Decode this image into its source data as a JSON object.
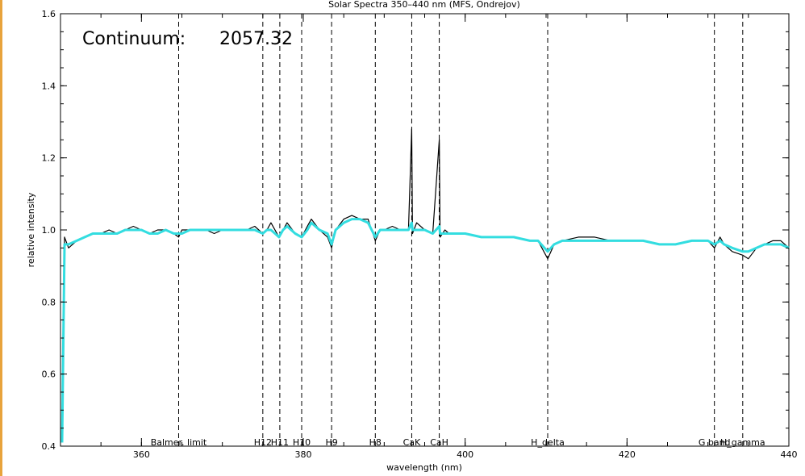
{
  "chart_data": {
    "type": "line",
    "title": "Solar Spectra 350–440 nm (MFS, Ondrejov)",
    "xlabel": "wavelength (nm)",
    "ylabel": "relative intensity",
    "xlim": [
      350,
      440
    ],
    "ylim": [
      0.4,
      1.6
    ],
    "x_ticks": [
      360,
      380,
      400,
      420,
      440
    ],
    "y_ticks": [
      0.4,
      0.6,
      0.8,
      1.0,
      1.2,
      1.4,
      1.6
    ],
    "annotation": {
      "label": "Continuum:",
      "value": "2057.32"
    },
    "spectral_lines": [
      {
        "name": "Balmer. limit",
        "wavelength": 364.6
      },
      {
        "name": "H12",
        "wavelength": 375.0
      },
      {
        "name": "H11",
        "wavelength": 377.1
      },
      {
        "name": "H10",
        "wavelength": 379.8
      },
      {
        "name": "H9",
        "wavelength": 383.5
      },
      {
        "name": "H8",
        "wavelength": 388.9
      },
      {
        "name": "CaK",
        "wavelength": 393.4
      },
      {
        "name": "CaH",
        "wavelength": 396.8
      },
      {
        "name": "H_delta",
        "wavelength": 410.2
      },
      {
        "name": "G band",
        "wavelength": 430.8
      },
      {
        "name": "H_gamma",
        "wavelength": 434.3
      }
    ],
    "series": [
      {
        "color": "#000000",
        "x": [
          350.2,
          350.5,
          351,
          352,
          353,
          354,
          355,
          356,
          357,
          358,
          359,
          360,
          361,
          362,
          363,
          364,
          364.6,
          365,
          366,
          367,
          368,
          369,
          370,
          371,
          372,
          373,
          374,
          375,
          375.5,
          376,
          377,
          377.5,
          378,
          379,
          379.8,
          380.5,
          381,
          382,
          383,
          383.5,
          384,
          385,
          386,
          387,
          388,
          388.9,
          389.5,
          390,
          391,
          392,
          393,
          393.4,
          393.5,
          394,
          395,
          396,
          396.8,
          396.9,
          397.5,
          398,
          399,
          400,
          402,
          404,
          406,
          408,
          409,
          410.2,
          411,
          412,
          414,
          416,
          418,
          420,
          422,
          424,
          426,
          428,
          430,
          430.8,
          431.5,
          432,
          433,
          434.3,
          435,
          436,
          437,
          438,
          439,
          440
        ],
        "y": [
          0.41,
          0.98,
          0.95,
          0.97,
          0.98,
          0.99,
          0.99,
          1.0,
          0.99,
          1.0,
          1.01,
          1.0,
          0.99,
          1.0,
          1.0,
          0.99,
          0.98,
          1.0,
          1.0,
          1.0,
          1.0,
          0.99,
          1.0,
          1.0,
          1.0,
          1.0,
          1.01,
          0.99,
          1.0,
          1.02,
          0.98,
          1.0,
          1.02,
          0.99,
          0.98,
          1.01,
          1.03,
          1.0,
          0.98,
          0.95,
          1.0,
          1.03,
          1.04,
          1.03,
          1.03,
          0.97,
          1.0,
          1.0,
          1.01,
          1.0,
          1.0,
          1.28,
          0.99,
          1.02,
          1.0,
          0.99,
          1.25,
          0.98,
          1.0,
          0.99,
          0.99,
          0.99,
          0.98,
          0.98,
          0.98,
          0.97,
          0.97,
          0.92,
          0.96,
          0.97,
          0.98,
          0.98,
          0.97,
          0.97,
          0.97,
          0.96,
          0.96,
          0.97,
          0.97,
          0.95,
          0.98,
          0.96,
          0.94,
          0.93,
          0.92,
          0.95,
          0.96,
          0.97,
          0.97,
          0.95
        ]
      },
      {
        "color": "#33dde0",
        "x": [
          350.2,
          350.5,
          351,
          352,
          353,
          354,
          355,
          356,
          357,
          358,
          359,
          360,
          361,
          362,
          363,
          364,
          364.6,
          365,
          366,
          367,
          368,
          369,
          370,
          371,
          372,
          373,
          374,
          375,
          375.5,
          376,
          377,
          377.5,
          378,
          379,
          379.8,
          380.5,
          381,
          382,
          383,
          383.5,
          384,
          385,
          386,
          387,
          388,
          388.9,
          389.5,
          390,
          391,
          392,
          393,
          393.4,
          393.5,
          394,
          395,
          396,
          396.8,
          396.9,
          397.5,
          398,
          399,
          400,
          402,
          404,
          406,
          408,
          409,
          410.2,
          411,
          412,
          414,
          416,
          418,
          420,
          422,
          424,
          426,
          428,
          430,
          430.8,
          431.5,
          432,
          433,
          434.3,
          435,
          436,
          437,
          438,
          439,
          440
        ],
        "y": [
          0.41,
          0.96,
          0.96,
          0.97,
          0.98,
          0.99,
          0.99,
          0.99,
          0.99,
          1.0,
          1.0,
          1.0,
          0.99,
          0.99,
          1.0,
          0.99,
          0.99,
          0.99,
          1.0,
          1.0,
          1.0,
          1.0,
          1.0,
          1.0,
          1.0,
          1.0,
          1.0,
          0.99,
          1.0,
          1.0,
          0.98,
          1.0,
          1.01,
          0.99,
          0.98,
          1.0,
          1.02,
          1.0,
          0.99,
          0.96,
          1.0,
          1.02,
          1.03,
          1.03,
          1.02,
          0.98,
          1.0,
          1.0,
          1.0,
          1.0,
          1.0,
          1.02,
          1.0,
          1.0,
          1.0,
          0.99,
          1.01,
          0.99,
          0.99,
          0.99,
          0.99,
          0.99,
          0.98,
          0.98,
          0.98,
          0.97,
          0.97,
          0.94,
          0.96,
          0.97,
          0.97,
          0.97,
          0.97,
          0.97,
          0.97,
          0.96,
          0.96,
          0.97,
          0.97,
          0.96,
          0.97,
          0.96,
          0.95,
          0.94,
          0.94,
          0.95,
          0.96,
          0.96,
          0.96,
          0.95
        ]
      }
    ]
  }
}
